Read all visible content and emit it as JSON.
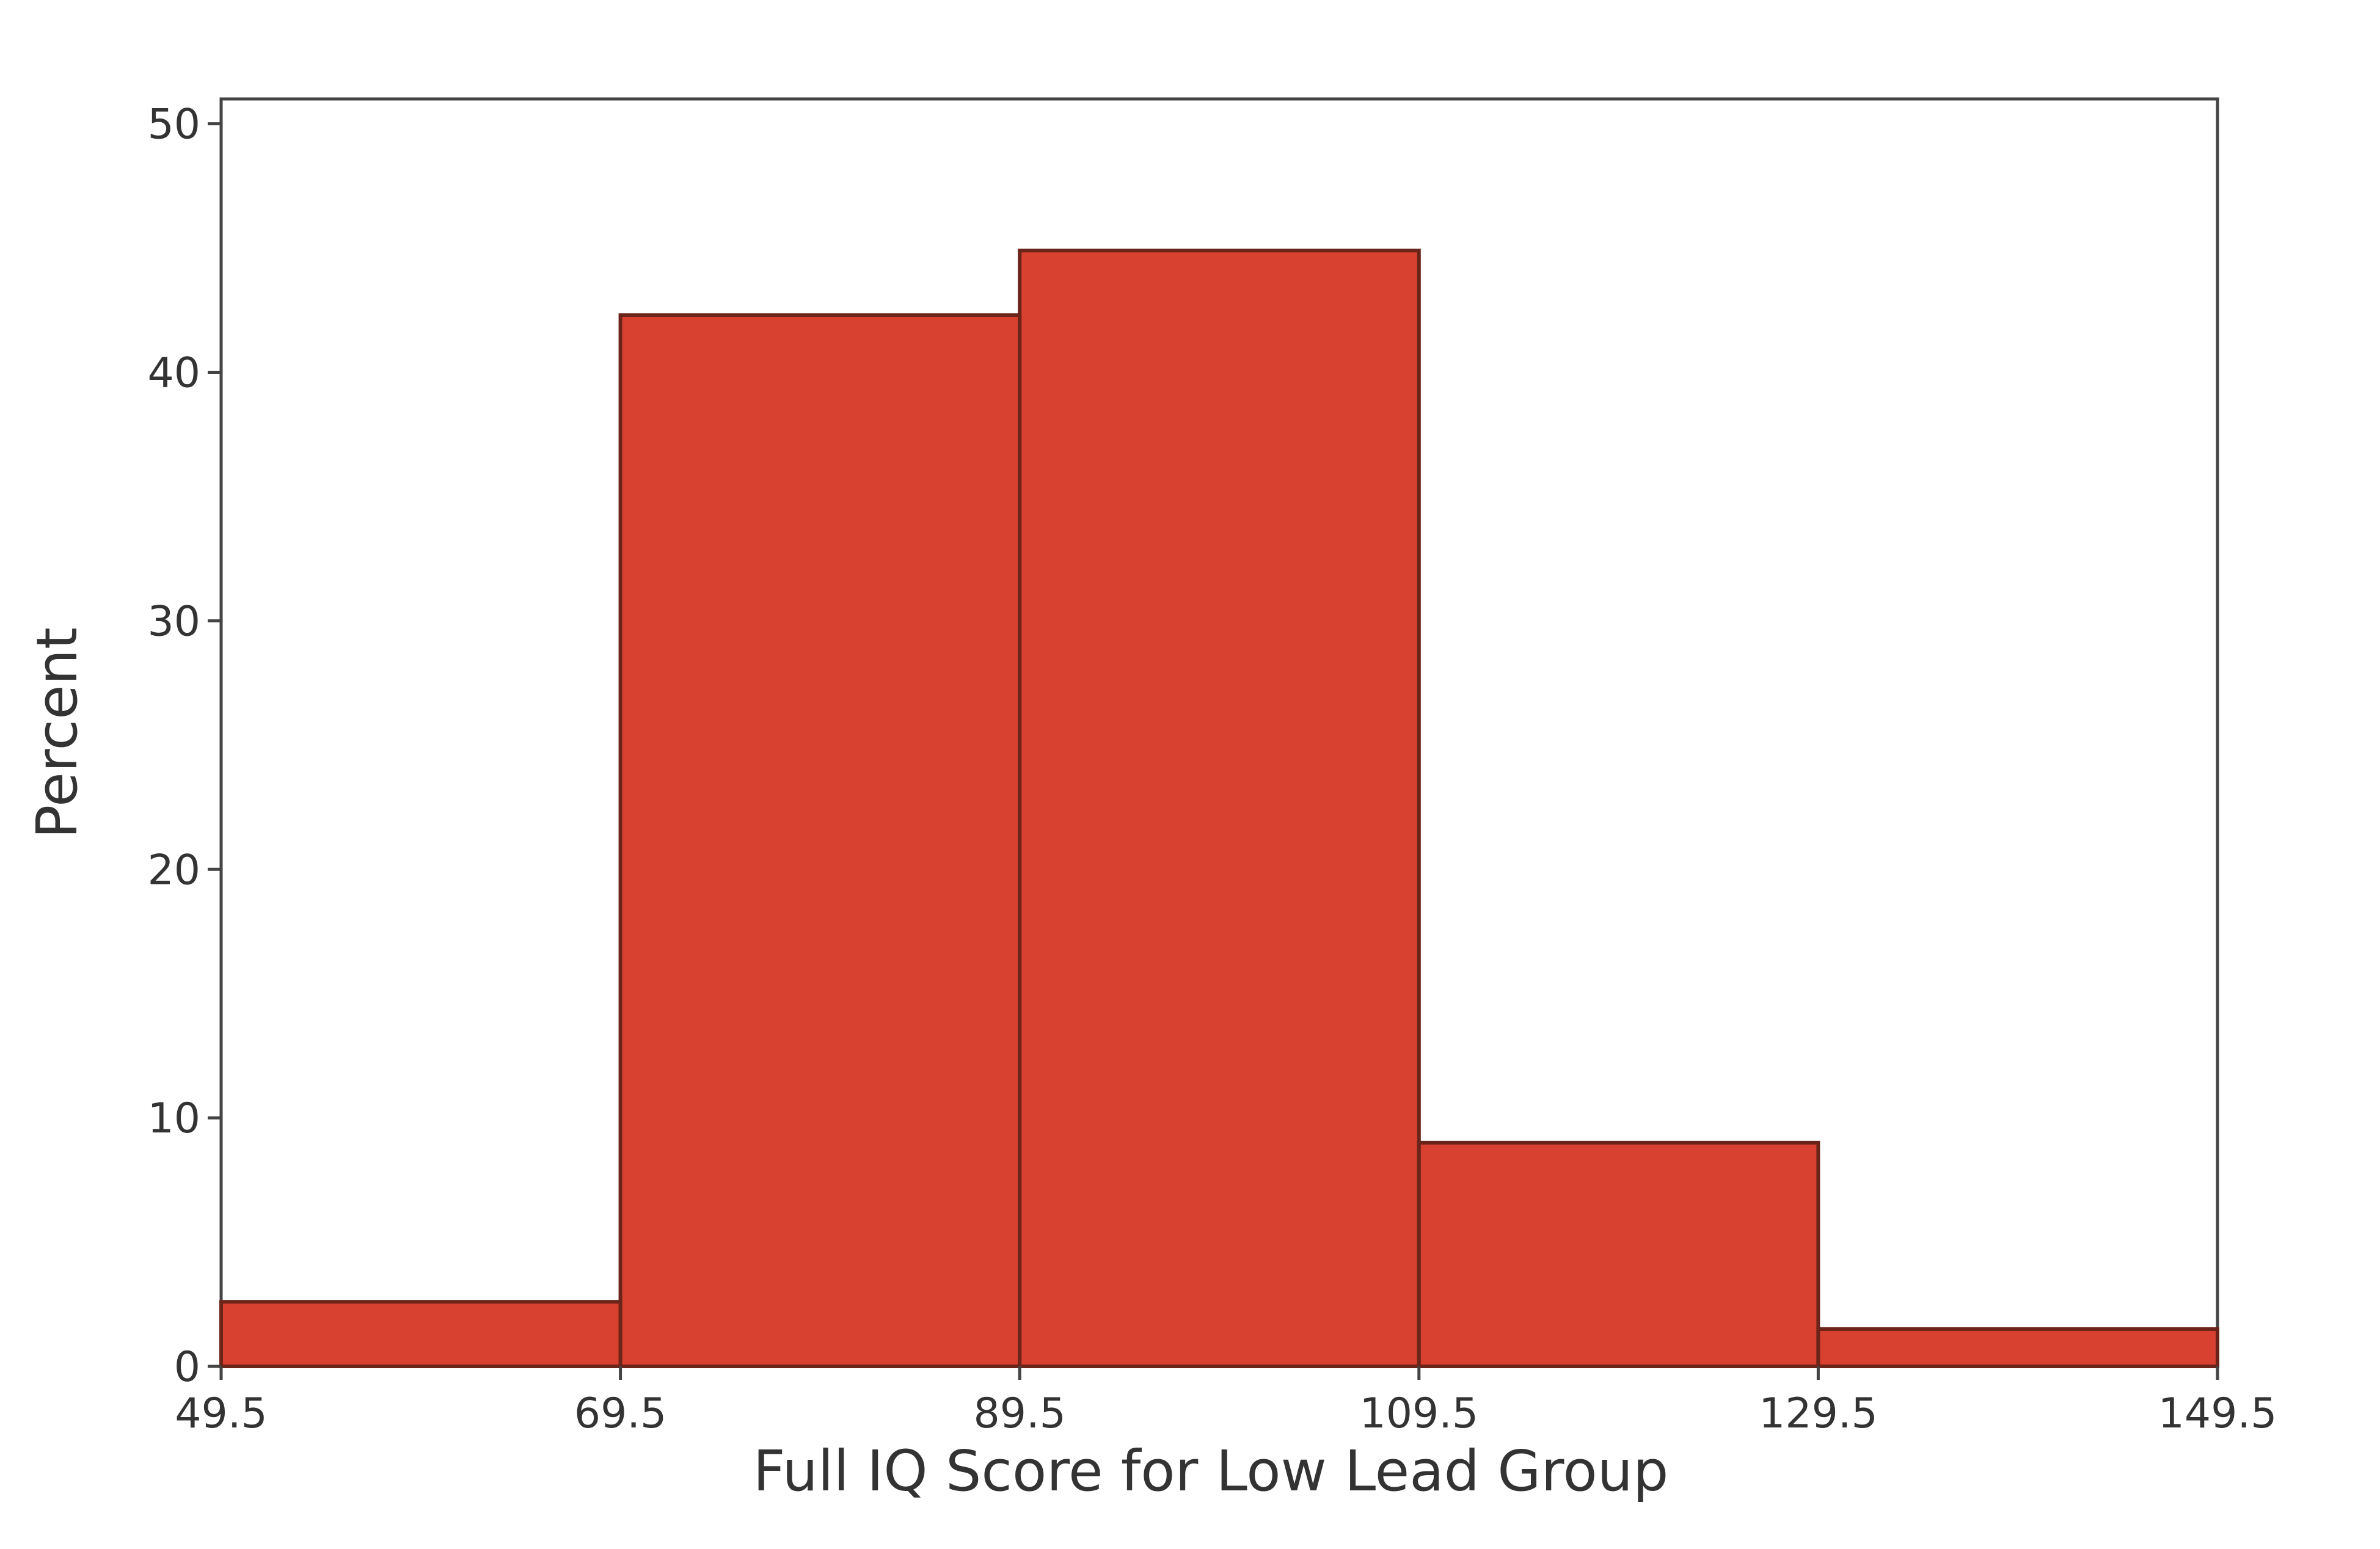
{
  "chart_data": {
    "type": "histogram",
    "x_label": "Full IQ Score for Low Lead Group",
    "y_label": "Percent",
    "bins": [
      49.5,
      69.5,
      89.5,
      109.5,
      129.5,
      149.5
    ],
    "values": [
      2.6,
      42.3,
      44.9,
      9.0,
      1.5
    ],
    "color": "#d84130",
    "xlim": [
      49.5,
      149.5
    ],
    "xticks": [
      49.5,
      69.5,
      89.5,
      109.5,
      129.5,
      149.5
    ],
    "ylim": [
      0,
      51
    ],
    "yticks": [
      0,
      10,
      20,
      30,
      40,
      50
    ],
    "grid": false
  }
}
